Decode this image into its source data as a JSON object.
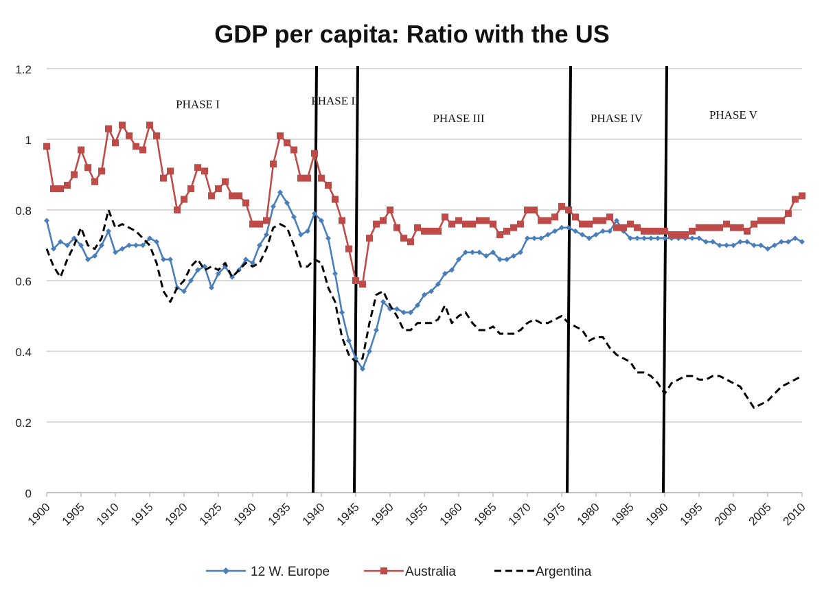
{
  "chart_data": {
    "type": "line",
    "title": "GDP per capita: Ratio with the US",
    "xlabel": "",
    "ylabel": "",
    "xlim": [
      1900,
      2010
    ],
    "ylim": [
      0,
      1.2
    ],
    "y_ticks": [
      "0",
      "0.2",
      "0.4",
      "0.6",
      "0.8",
      "1",
      "1.2"
    ],
    "x_ticks": [
      "1900",
      "1905",
      "1910",
      "1915",
      "1920",
      "1925",
      "1930",
      "1935",
      "1940",
      "1945",
      "1950",
      "1955",
      "1960",
      "1965",
      "1970",
      "1975",
      "1980",
      "1985",
      "1990",
      "1995",
      "2000",
      "2005",
      "2010"
    ],
    "grid": "horizontal",
    "legend_position": "bottom",
    "phase_dividers": [
      1939,
      1945,
      1976,
      1990
    ],
    "phase_labels": [
      {
        "text": "PHASE I",
        "x": 1922,
        "y": 1.1
      },
      {
        "text": "PHASE II",
        "x": 1942,
        "y": 1.11
      },
      {
        "text": "PHASE III",
        "x": 1960,
        "y": 1.06
      },
      {
        "text": "PHASE IV",
        "x": 1983,
        "y": 1.06
      },
      {
        "text": "PHASE  V",
        "x": 2000,
        "y": 1.07
      }
    ],
    "x": [
      1900,
      1901,
      1902,
      1903,
      1904,
      1905,
      1906,
      1907,
      1908,
      1909,
      1910,
      1911,
      1912,
      1913,
      1914,
      1915,
      1916,
      1917,
      1918,
      1919,
      1920,
      1921,
      1922,
      1923,
      1924,
      1925,
      1926,
      1927,
      1928,
      1929,
      1930,
      1931,
      1932,
      1933,
      1934,
      1935,
      1936,
      1937,
      1938,
      1939,
      1940,
      1941,
      1942,
      1943,
      1944,
      1945,
      1946,
      1947,
      1948,
      1949,
      1950,
      1951,
      1952,
      1953,
      1954,
      1955,
      1956,
      1957,
      1958,
      1959,
      1960,
      1961,
      1962,
      1963,
      1964,
      1965,
      1966,
      1967,
      1968,
      1969,
      1970,
      1971,
      1972,
      1973,
      1974,
      1975,
      1976,
      1977,
      1978,
      1979,
      1980,
      1981,
      1982,
      1983,
      1984,
      1985,
      1986,
      1987,
      1988,
      1989,
      1990,
      1991,
      1992,
      1993,
      1994,
      1995,
      1996,
      1997,
      1998,
      1999,
      2000,
      2001,
      2002,
      2003,
      2004,
      2005,
      2006,
      2007,
      2008,
      2009,
      2010
    ],
    "series": [
      {
        "name": "12 W. Europe",
        "color": "#4a7ebb",
        "marker": "diamond",
        "dash": "solid",
        "values": [
          0.77,
          0.69,
          0.71,
          0.7,
          0.72,
          0.7,
          0.66,
          0.67,
          0.7,
          0.74,
          0.68,
          0.69,
          0.7,
          0.7,
          0.7,
          0.72,
          0.71,
          0.66,
          0.66,
          0.58,
          0.57,
          0.6,
          0.63,
          0.64,
          0.58,
          0.62,
          0.64,
          0.61,
          0.63,
          0.66,
          0.65,
          0.7,
          0.73,
          0.81,
          0.85,
          0.82,
          0.78,
          0.73,
          0.74,
          0.79,
          0.77,
          0.72,
          0.62,
          0.51,
          0.43,
          0.38,
          0.35,
          0.4,
          0.46,
          0.54,
          0.52,
          0.52,
          0.51,
          0.51,
          0.53,
          0.56,
          0.57,
          0.59,
          0.62,
          0.63,
          0.66,
          0.68,
          0.68,
          0.68,
          0.67,
          0.68,
          0.66,
          0.66,
          0.67,
          0.68,
          0.72,
          0.72,
          0.72,
          0.73,
          0.74,
          0.75,
          0.75,
          0.74,
          0.73,
          0.72,
          0.73,
          0.74,
          0.74,
          0.77,
          0.74,
          0.72,
          0.72,
          0.72,
          0.72,
          0.72,
          0.72,
          0.72,
          0.72,
          0.72,
          0.72,
          0.72,
          0.71,
          0.71,
          0.7,
          0.7,
          0.7,
          0.71,
          0.71,
          0.7,
          0.7,
          0.69,
          0.7,
          0.71,
          0.71,
          0.72,
          0.71
        ]
      },
      {
        "name": "Australia",
        "color": "#be4b48",
        "marker": "square",
        "dash": "solid",
        "values": [
          0.98,
          0.86,
          0.86,
          0.87,
          0.9,
          0.97,
          0.92,
          0.88,
          0.91,
          1.03,
          0.99,
          1.04,
          1.01,
          0.98,
          0.97,
          1.04,
          1.01,
          0.89,
          0.91,
          0.8,
          0.83,
          0.86,
          0.92,
          0.91,
          0.84,
          0.86,
          0.88,
          0.84,
          0.84,
          0.82,
          0.76,
          0.76,
          0.77,
          0.93,
          1.01,
          0.99,
          0.97,
          0.89,
          0.89,
          0.96,
          0.89,
          0.87,
          0.83,
          0.77,
          0.69,
          0.6,
          0.59,
          0.72,
          0.76,
          0.77,
          0.8,
          0.75,
          0.72,
          0.71,
          0.75,
          0.74,
          0.74,
          0.74,
          0.78,
          0.76,
          0.77,
          0.76,
          0.76,
          0.77,
          0.77,
          0.76,
          0.73,
          0.74,
          0.75,
          0.76,
          0.8,
          0.8,
          0.77,
          0.77,
          0.78,
          0.81,
          0.8,
          0.78,
          0.76,
          0.76,
          0.77,
          0.77,
          0.78,
          0.75,
          0.75,
          0.76,
          0.75,
          0.74,
          0.74,
          0.74,
          0.74,
          0.73,
          0.73,
          0.73,
          0.74,
          0.75,
          0.75,
          0.75,
          0.75,
          0.76,
          0.75,
          0.75,
          0.74,
          0.76,
          0.77,
          0.77,
          0.77,
          0.77,
          0.79,
          0.83,
          0.84
        ]
      },
      {
        "name": "Argentina",
        "color": "#000000",
        "marker": "none",
        "dash": "dashed",
        "values": [
          0.69,
          0.64,
          0.61,
          0.66,
          0.7,
          0.75,
          0.7,
          0.69,
          0.72,
          0.8,
          0.75,
          0.76,
          0.75,
          0.74,
          0.72,
          0.7,
          0.65,
          0.57,
          0.54,
          0.58,
          0.6,
          0.64,
          0.66,
          0.63,
          0.64,
          0.63,
          0.65,
          0.61,
          0.63,
          0.65,
          0.64,
          0.65,
          0.69,
          0.75,
          0.76,
          0.75,
          0.7,
          0.64,
          0.64,
          0.66,
          0.65,
          0.58,
          0.54,
          0.44,
          0.39,
          0.37,
          0.38,
          0.48,
          0.56,
          0.57,
          0.53,
          0.5,
          0.46,
          0.46,
          0.48,
          0.48,
          0.48,
          0.49,
          0.53,
          0.48,
          0.5,
          0.51,
          0.48,
          0.46,
          0.46,
          0.47,
          0.45,
          0.45,
          0.45,
          0.46,
          0.48,
          0.49,
          0.48,
          0.48,
          0.49,
          0.5,
          0.48,
          0.47,
          0.46,
          0.43,
          0.44,
          0.44,
          0.41,
          0.39,
          0.38,
          0.37,
          0.34,
          0.34,
          0.33,
          0.31,
          0.28,
          0.31,
          0.32,
          0.33,
          0.33,
          0.32,
          0.32,
          0.33,
          0.33,
          0.32,
          0.31,
          0.3,
          0.27,
          0.24,
          0.25,
          0.26,
          0.28,
          0.3,
          0.31,
          0.32,
          0.33
        ]
      }
    ]
  }
}
